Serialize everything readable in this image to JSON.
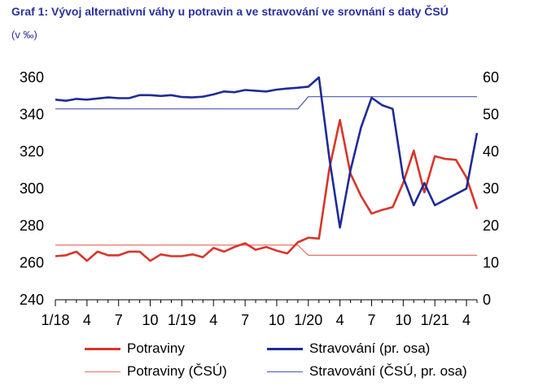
{
  "title": "Graf 1: Vývoj alternativní váhy u potravin a ve stravování ve srovnání s daty ČSÚ",
  "subtitle": "(v ‰)",
  "colors": {
    "title": "#2b2f9e",
    "red": "#d9352a",
    "red_light": "#e57068",
    "blue": "#1f2b96",
    "blue_light": "#4b55b0",
    "axis": "#000000"
  },
  "chart_data": {
    "type": "line",
    "title": "Graf 1: Vývoj alternativní váhy u potravin a ve stravování ve srovnání s daty ČSÚ",
    "subtitle": "(v ‰)",
    "x_labels": [
      "1/18",
      "4",
      "7",
      "10",
      "1/19",
      "4",
      "7",
      "10",
      "1/20",
      "4",
      "7",
      "10",
      "1/21",
      "4"
    ],
    "y_left": {
      "ticks": [
        "360",
        "340",
        "320",
        "300",
        "280",
        "260",
        "240"
      ],
      "ylim": [
        240,
        360
      ]
    },
    "y_right": {
      "ticks": [
        "60",
        "50",
        "40",
        "30",
        "20",
        "10",
        "0"
      ],
      "ylim": [
        0,
        60
      ]
    },
    "grid": false,
    "legend_position": "bottom",
    "series": [
      {
        "name": "Potraviny",
        "axis": "left",
        "values": [
          263.5,
          264,
          266,
          261,
          266,
          264,
          264,
          266,
          266,
          261,
          264.5,
          263.5,
          263.5,
          264.5,
          263,
          268,
          266,
          268.5,
          270.5,
          267,
          268.5,
          266.5,
          265,
          271,
          273.5,
          273,
          311,
          337,
          308,
          296,
          286.5,
          288.5,
          290,
          303,
          320.5,
          298,
          317.5,
          316,
          315.5,
          306,
          289
        ]
      },
      {
        "name": "Stravování (pr. osa)",
        "axis": "right",
        "values": [
          54,
          53.7,
          54.2,
          54,
          54.3,
          54.6,
          54.4,
          54.4,
          55.2,
          55.2,
          55,
          55.2,
          54.7,
          54.6,
          54.8,
          55.4,
          56.2,
          56,
          56.6,
          56.4,
          56.2,
          56.7,
          57,
          57.2,
          57.5,
          60,
          38,
          19.5,
          35,
          46.5,
          54.5,
          52.5,
          51.5,
          33,
          25.5,
          31.5,
          25.5,
          27,
          28.5,
          30,
          45
        ]
      },
      {
        "name": "Potraviny (ČSÚ)",
        "axis": "left",
        "values": [
          269.5,
          269.5,
          269.5,
          269.5,
          269.5,
          269.5,
          269.5,
          269.5,
          269.5,
          269.5,
          269.5,
          269.5,
          269.5,
          269.5,
          269.5,
          269.5,
          269.5,
          269.5,
          269.5,
          269.5,
          269.5,
          269.5,
          269.5,
          269.5,
          264,
          264,
          264,
          264,
          264,
          264,
          264,
          264,
          264,
          264,
          264,
          264,
          264,
          264,
          264,
          264,
          264
        ]
      },
      {
        "name": "Stravování (ČSÚ, pr. osa)",
        "axis": "right",
        "values": [
          51.5,
          51.5,
          51.5,
          51.5,
          51.5,
          51.5,
          51.5,
          51.5,
          51.5,
          51.5,
          51.5,
          51.5,
          51.5,
          51.5,
          51.5,
          51.5,
          51.5,
          51.5,
          51.5,
          51.5,
          51.5,
          51.5,
          51.5,
          51.5,
          54.8,
          54.8,
          54.8,
          54.8,
          54.8,
          54.8,
          54.8,
          54.8,
          54.8,
          54.8,
          54.8,
          54.8,
          54.8,
          54.8,
          54.8,
          54.8,
          54.8
        ]
      }
    ]
  },
  "legend": [
    {
      "label": "Potraviny",
      "color": "#d9352a",
      "style": "thick"
    },
    {
      "label": "Stravování (pr. osa)",
      "color": "#1f2b96",
      "style": "thick"
    },
    {
      "label": "Potraviny (ČSÚ)",
      "color": "#e57068",
      "style": "thin"
    },
    {
      "label": "Stravování (ČSÚ, pr. osa)",
      "color": "#4b55b0",
      "style": "thin"
    }
  ]
}
